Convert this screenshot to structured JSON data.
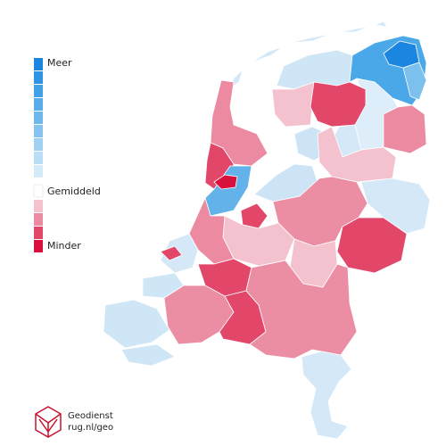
{
  "legend": {
    "labels": [
      "Meer",
      "Gemiddeld",
      "Minder"
    ]
  },
  "logo": {
    "line1": "Geodienst",
    "line2": "rug.nl/geo"
  }
}
